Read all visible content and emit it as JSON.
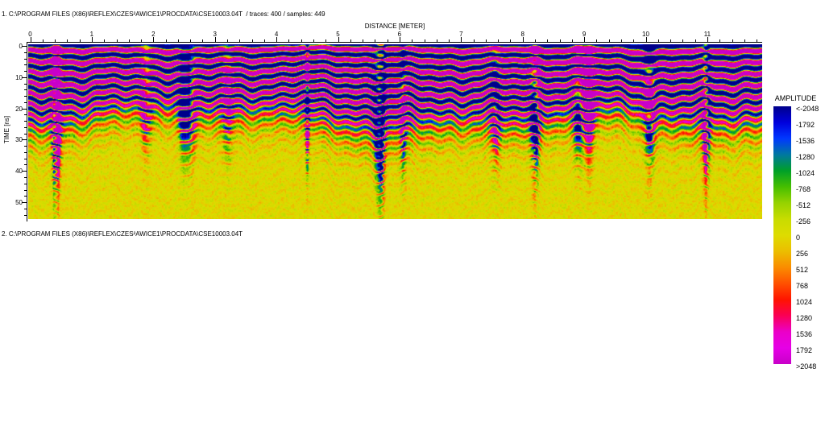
{
  "panel1": {
    "title": "1. C:\\PROGRAM FILES (X86)\\REFLEX\\CZES²AWICE1\\PROCDATA\\CSE10003.04T  / traces: 400 / samples: 449"
  },
  "panel2": {
    "title": "2. C:\\PROGRAM FILES (X86)\\REFLEX\\CZES²AWICE1\\PROCDATA\\CSE10003.04T"
  },
  "chart": {
    "type": "heatmap-radargram",
    "traces": "400",
    "samples": "449",
    "axes": {
      "distance": {
        "label": "DISTANCE [METER]",
        "ticks": [
          "0",
          "1",
          "2",
          "3",
          "4",
          "5",
          "6",
          "7",
          "8",
          "9",
          "10",
          "11"
        ],
        "minor_divisions": 5,
        "range_max_visible": 11.9
      },
      "time": {
        "label": "TIME [ns]",
        "ticks": [
          "0",
          "10",
          "20",
          "30",
          "40",
          "50"
        ],
        "minor_divisions": 5,
        "range_max_visible": 56
      }
    }
  },
  "colorbar": {
    "title": "AMPLITUDE",
    "labels": [
      "<-2048",
      "-1792",
      "-1536",
      "-1280",
      "-1024",
      "-768",
      "-512",
      "-256",
      "0",
      "256",
      "512",
      "768",
      "1024",
      "1280",
      "1536",
      "1792",
      ">2048"
    ],
    "colors": [
      "#00008B",
      "#0000DC",
      "#0038FF",
      "#0078A0",
      "#00A028",
      "#46BE00",
      "#96D200",
      "#C8DC00",
      "#DEDC00",
      "#EBBE00",
      "#FA8C00",
      "#FF5000",
      "#FF1400",
      "#FA0055",
      "#EB00C8",
      "#E600E6",
      "#C800C8"
    ]
  }
}
